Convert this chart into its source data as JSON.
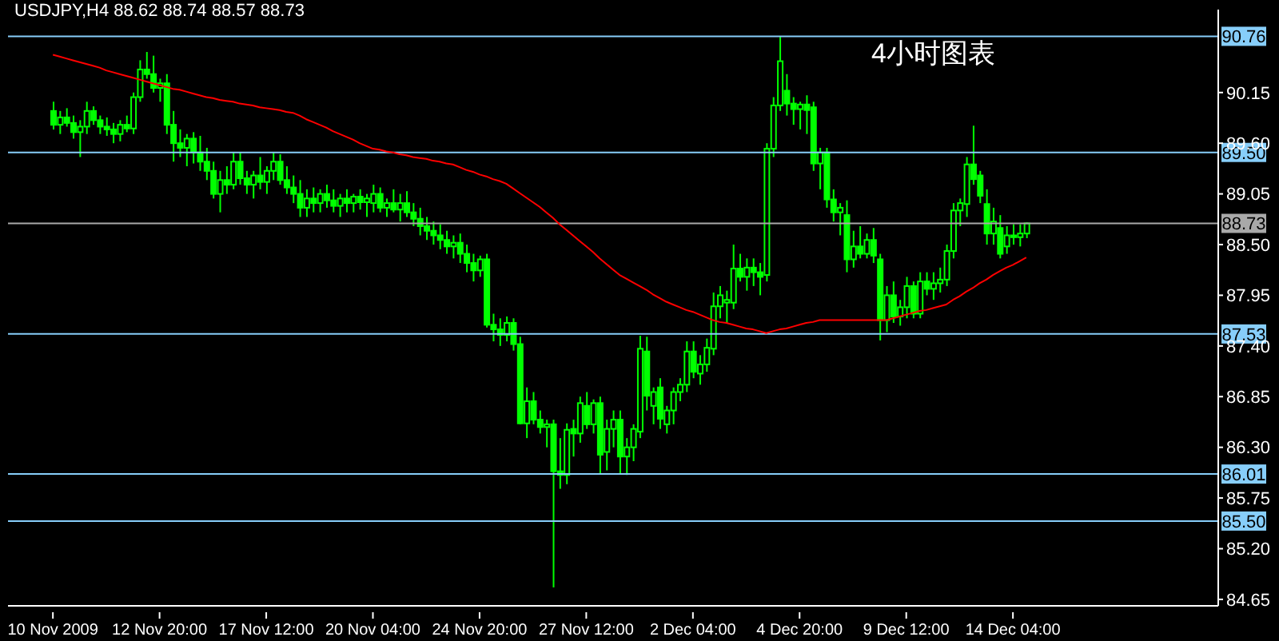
{
  "chart_data": {
    "type": "candlestick",
    "title": "USDJPY,H4 88.62 88.74 88.57 88.73",
    "annotations": [
      "4小时图表"
    ],
    "color": "#00ff00",
    "categories": [
      "10 Nov 2009",
      null,
      null,
      null,
      null,
      null,
      null,
      null,
      null,
      null,
      null,
      null,
      null,
      null,
      null,
      null,
      "12 Nov 20:00",
      null,
      null,
      null,
      null,
      null,
      null,
      null,
      null,
      null,
      null,
      null,
      null,
      null,
      null,
      null,
      "17 Nov 12:00",
      null,
      null,
      null,
      null,
      null,
      null,
      null,
      null,
      null,
      null,
      null,
      null,
      null,
      null,
      null,
      "20 Nov 04:00",
      null,
      null,
      null,
      null,
      null,
      null,
      null,
      null,
      null,
      null,
      null,
      null,
      null,
      null,
      null,
      "24 Nov 20:00",
      null,
      null,
      null,
      null,
      null,
      null,
      null,
      null,
      null,
      null,
      null,
      null,
      null,
      null,
      null,
      "27 Nov 12:00",
      null,
      null,
      null,
      null,
      null,
      null,
      null,
      null,
      null,
      null,
      null,
      null,
      null,
      null,
      null,
      "2 Dec 04:00",
      null,
      null,
      null,
      null,
      null,
      null,
      null,
      null,
      null,
      null,
      null,
      null,
      null,
      null,
      null,
      "4 Dec 20:00",
      null,
      null,
      null,
      null,
      null,
      null,
      null,
      null,
      null,
      null,
      null,
      null,
      null,
      null,
      null,
      "9 Dec 12:00",
      null,
      null,
      null,
      null,
      null,
      null,
      null,
      null,
      null,
      null,
      null,
      null,
      null,
      null,
      null,
      "14 Dec 04:00",
      null,
      null
    ],
    "ohlc": [
      [
        89.95,
        90.05,
        89.75,
        89.8
      ],
      [
        89.8,
        89.95,
        89.7,
        89.88
      ],
      [
        89.88,
        89.98,
        89.78,
        89.82
      ],
      [
        89.82,
        89.9,
        89.65,
        89.72
      ],
      [
        89.72,
        89.85,
        89.45,
        89.78
      ],
      [
        89.78,
        90.05,
        89.7,
        89.95
      ],
      [
        89.95,
        90.0,
        89.8,
        89.85
      ],
      [
        89.85,
        89.9,
        89.7,
        89.78
      ],
      [
        89.78,
        89.88,
        89.68,
        89.75
      ],
      [
        89.75,
        89.82,
        89.6,
        89.7
      ],
      [
        89.7,
        89.85,
        89.62,
        89.8
      ],
      [
        89.8,
        89.9,
        89.72,
        89.76
      ],
      [
        89.76,
        90.15,
        89.7,
        90.1
      ],
      [
        90.1,
        90.5,
        90.05,
        90.4
      ],
      [
        90.4,
        90.59,
        90.3,
        90.35
      ],
      [
        90.35,
        90.55,
        90.15,
        90.2
      ],
      [
        90.2,
        90.3,
        90.05,
        90.25
      ],
      [
        90.25,
        90.35,
        89.7,
        89.8
      ],
      [
        89.8,
        89.95,
        89.4,
        89.6
      ],
      [
        89.6,
        89.75,
        89.45,
        89.55
      ],
      [
        89.55,
        89.7,
        89.35,
        89.65
      ],
      [
        89.65,
        89.72,
        89.38,
        89.5
      ],
      [
        89.5,
        89.68,
        89.3,
        89.4
      ],
      [
        89.4,
        89.55,
        89.2,
        89.3
      ],
      [
        89.3,
        89.4,
        89.0,
        89.05
      ],
      [
        89.05,
        89.3,
        88.85,
        89.2
      ],
      [
        89.2,
        89.35,
        89.05,
        89.15
      ],
      [
        89.15,
        89.5,
        89.1,
        89.4
      ],
      [
        89.4,
        89.5,
        89.15,
        89.22
      ],
      [
        89.22,
        89.3,
        89.05,
        89.15
      ],
      [
        89.15,
        89.3,
        89.0,
        89.25
      ],
      [
        89.25,
        89.45,
        89.1,
        89.18
      ],
      [
        89.18,
        89.35,
        89.05,
        89.3
      ],
      [
        89.3,
        89.5,
        89.2,
        89.4
      ],
      [
        89.4,
        89.48,
        89.15,
        89.2
      ],
      [
        89.2,
        89.35,
        89.05,
        89.12
      ],
      [
        89.12,
        89.25,
        88.95,
        89.05
      ],
      [
        89.05,
        89.2,
        88.8,
        88.9
      ],
      [
        88.9,
        89.1,
        88.8,
        89.0
      ],
      [
        89.0,
        89.12,
        88.85,
        88.95
      ],
      [
        88.95,
        89.1,
        88.85,
        89.05
      ],
      [
        89.05,
        89.15,
        88.9,
        88.98
      ],
      [
        88.98,
        89.1,
        88.85,
        88.92
      ],
      [
        88.92,
        89.05,
        88.8,
        89.0
      ],
      [
        89.0,
        89.1,
        88.85,
        88.95
      ],
      [
        88.95,
        89.05,
        88.85,
        89.02
      ],
      [
        89.02,
        89.1,
        88.88,
        88.96
      ],
      [
        88.96,
        89.05,
        88.8,
        89.0
      ],
      [
        88.95,
        89.15,
        88.85,
        89.05
      ],
      [
        89.05,
        89.12,
        88.85,
        88.9
      ],
      [
        88.9,
        89.0,
        88.8,
        88.95
      ],
      [
        88.95,
        89.1,
        88.85,
        88.88
      ],
      [
        88.88,
        89.05,
        88.75,
        88.95
      ],
      [
        88.95,
        89.08,
        88.8,
        88.85
      ],
      [
        88.85,
        88.95,
        88.7,
        88.78
      ],
      [
        88.78,
        88.9,
        88.6,
        88.7
      ],
      [
        88.7,
        88.8,
        88.55,
        88.65
      ],
      [
        88.65,
        88.75,
        88.5,
        88.6
      ],
      [
        88.6,
        88.72,
        88.45,
        88.55
      ],
      [
        88.55,
        88.65,
        88.4,
        88.48
      ],
      [
        88.48,
        88.6,
        88.35,
        88.52
      ],
      [
        88.52,
        88.62,
        88.3,
        88.4
      ],
      [
        88.4,
        88.5,
        88.2,
        88.3
      ],
      [
        88.3,
        88.4,
        88.1,
        88.22
      ],
      [
        88.22,
        88.38,
        88.15,
        88.34
      ],
      [
        88.34,
        88.4,
        87.6,
        87.63
      ],
      [
        87.63,
        87.75,
        87.45,
        87.58
      ],
      [
        87.58,
        87.7,
        87.4,
        87.52
      ],
      [
        87.52,
        87.72,
        87.45,
        87.65
      ],
      [
        87.65,
        87.7,
        87.35,
        87.42
      ],
      [
        87.42,
        87.5,
        86.55,
        86.56
      ],
      [
        86.56,
        86.95,
        86.4,
        86.8
      ],
      [
        86.8,
        86.9,
        86.55,
        86.6
      ],
      [
        86.6,
        86.7,
        86.45,
        86.52
      ],
      [
        86.52,
        86.6,
        86.3,
        86.55
      ],
      [
        86.55,
        86.6,
        84.78,
        86.04
      ],
      [
        86.04,
        86.4,
        85.85,
        86.0
      ],
      [
        86.0,
        86.56,
        85.9,
        86.49
      ],
      [
        86.5,
        86.6,
        86.2,
        86.45
      ],
      [
        86.45,
        86.85,
        86.35,
        86.78
      ],
      [
        86.75,
        86.9,
        86.5,
        86.55
      ],
      [
        86.55,
        86.82,
        86.45,
        86.78
      ],
      [
        86.78,
        86.85,
        86.01,
        86.22
      ],
      [
        86.25,
        86.6,
        86.05,
        86.5
      ],
      [
        86.5,
        86.7,
        86.3,
        86.6
      ],
      [
        86.6,
        86.7,
        86.01,
        86.2
      ],
      [
        86.2,
        86.4,
        86.0,
        86.3
      ],
      [
        86.3,
        86.55,
        86.15,
        86.5
      ],
      [
        86.47,
        87.51,
        86.4,
        87.37
      ],
      [
        87.34,
        87.5,
        86.7,
        86.86
      ],
      [
        86.75,
        86.95,
        86.55,
        86.9
      ],
      [
        86.95,
        87.05,
        86.5,
        86.61
      ],
      [
        86.55,
        86.75,
        86.45,
        86.7
      ],
      [
        86.7,
        86.95,
        86.55,
        86.9
      ],
      [
        86.9,
        87.05,
        86.8,
        86.98
      ],
      [
        86.98,
        87.45,
        86.9,
        87.34
      ],
      [
        87.34,
        87.45,
        87.05,
        87.12
      ],
      [
        87.1,
        87.3,
        86.98,
        87.2
      ],
      [
        87.2,
        87.48,
        87.12,
        87.38
      ],
      [
        87.37,
        87.98,
        87.3,
        87.83
      ],
      [
        87.83,
        88.05,
        87.7,
        87.95
      ],
      [
        87.87,
        88.0,
        87.65,
        87.9
      ],
      [
        87.87,
        88.5,
        87.8,
        88.24
      ],
      [
        88.24,
        88.4,
        88.1,
        88.15
      ],
      [
        88.15,
        88.35,
        88.0,
        88.25
      ],
      [
        88.25,
        88.35,
        88.05,
        88.2
      ],
      [
        88.2,
        88.3,
        87.95,
        88.15
      ],
      [
        88.17,
        89.6,
        88.1,
        89.54
      ],
      [
        89.54,
        90.1,
        89.45,
        90.01
      ],
      [
        90.01,
        90.76,
        89.95,
        90.49
      ],
      [
        90.17,
        90.35,
        89.9,
        90.03
      ],
      [
        90.03,
        90.1,
        89.8,
        89.97
      ],
      [
        89.97,
        90.05,
        89.75,
        90.02
      ],
      [
        90.02,
        90.12,
        89.7,
        89.96
      ],
      [
        89.99,
        90.05,
        89.3,
        89.38
      ],
      [
        89.38,
        89.55,
        89.1,
        89.5
      ],
      [
        89.5,
        89.55,
        88.9,
        88.99
      ],
      [
        88.99,
        89.1,
        88.75,
        88.85
      ],
      [
        88.85,
        88.95,
        88.6,
        88.9
      ],
      [
        88.82,
        88.98,
        88.2,
        88.34
      ],
      [
        88.34,
        88.65,
        88.25,
        88.48
      ],
      [
        88.48,
        88.7,
        88.35,
        88.4
      ],
      [
        88.4,
        88.62,
        88.35,
        88.55
      ],
      [
        88.55,
        88.68,
        88.3,
        88.38
      ],
      [
        88.34,
        88.4,
        87.46,
        87.68
      ],
      [
        87.68,
        88.05,
        87.55,
        87.95
      ],
      [
        87.95,
        88.1,
        87.65,
        87.72
      ],
      [
        87.72,
        87.9,
        87.62,
        87.82
      ],
      [
        87.82,
        88.15,
        87.7,
        88.05
      ],
      [
        88.05,
        88.1,
        87.7,
        87.75
      ],
      [
        87.75,
        88.2,
        87.7,
        88.1
      ],
      [
        88.1,
        88.2,
        87.95,
        88.02
      ],
      [
        88.02,
        88.2,
        87.9,
        88.08
      ],
      [
        88.08,
        88.25,
        87.98,
        88.12
      ],
      [
        88.12,
        88.5,
        88.05,
        88.43
      ],
      [
        88.43,
        88.95,
        88.35,
        88.87
      ],
      [
        88.87,
        89.0,
        88.7,
        88.95
      ],
      [
        88.94,
        89.45,
        88.8,
        89.37
      ],
      [
        89.37,
        89.79,
        89.15,
        89.21
      ],
      [
        89.25,
        89.3,
        88.95,
        89.03
      ],
      [
        88.94,
        89.1,
        88.5,
        88.62
      ],
      [
        88.62,
        88.9,
        88.5,
        88.75
      ],
      [
        88.68,
        88.82,
        88.35,
        88.4
      ],
      [
        88.48,
        88.7,
        88.4,
        88.6
      ],
      [
        88.6,
        88.72,
        88.5,
        88.58
      ],
      [
        88.58,
        88.72,
        88.48,
        88.62
      ],
      [
        88.62,
        88.74,
        88.57,
        88.73
      ]
    ],
    "series": [
      {
        "type": "line",
        "color": "#ff0000",
        "values": [
          90.56,
          90.54,
          90.52,
          90.5,
          90.48,
          90.46,
          90.44,
          90.42,
          90.39,
          90.37,
          90.35,
          90.33,
          90.31,
          90.29,
          90.27,
          90.25,
          90.23,
          90.21,
          90.19,
          90.18,
          90.16,
          90.14,
          90.12,
          90.1,
          90.09,
          90.07,
          90.06,
          90.05,
          90.03,
          90.02,
          90.01,
          89.99,
          89.98,
          89.97,
          89.96,
          89.94,
          89.93,
          89.9,
          89.86,
          89.83,
          89.8,
          89.77,
          89.73,
          89.7,
          89.67,
          89.64,
          89.6,
          89.57,
          89.54,
          89.53,
          89.51,
          89.5,
          89.48,
          89.47,
          89.45,
          89.44,
          89.43,
          89.41,
          89.4,
          89.38,
          89.37,
          89.34,
          89.31,
          89.29,
          89.26,
          89.24,
          89.21,
          89.19,
          89.16,
          89.11,
          89.06,
          89.01,
          88.96,
          88.91,
          88.85,
          88.79,
          88.72,
          88.66,
          88.6,
          88.54,
          88.48,
          88.42,
          88.35,
          88.29,
          88.23,
          88.17,
          88.13,
          88.09,
          88.05,
          88.01,
          87.96,
          87.92,
          87.88,
          87.85,
          87.82,
          87.79,
          87.77,
          87.74,
          87.71,
          87.68,
          87.66,
          87.65,
          87.63,
          87.61,
          87.59,
          87.58,
          87.56,
          87.54,
          87.56,
          87.58,
          87.59,
          87.61,
          87.63,
          87.65,
          87.66,
          87.68,
          87.68,
          87.68,
          87.68,
          87.68,
          87.68,
          87.68,
          87.68,
          87.68,
          87.68,
          87.68,
          87.7,
          87.72,
          87.74,
          87.76,
          87.78,
          87.79,
          87.81,
          87.83,
          87.85,
          87.9,
          87.94,
          87.99,
          88.03,
          88.08,
          88.12,
          88.17,
          88.21,
          88.25,
          88.28,
          88.32,
          88.36
        ]
      }
    ],
    "ylim": [
      84.58,
      91.05
    ],
    "yticks": [
      {
        "value": 84.65,
        "label": "84.65"
      },
      {
        "value": 85.2,
        "label": "85.20"
      },
      {
        "value": 85.75,
        "label": "85.75"
      },
      {
        "value": 86.3,
        "label": "86.30"
      },
      {
        "value": 86.85,
        "label": "86.85"
      },
      {
        "value": 87.4,
        "label": "87.40"
      },
      {
        "value": 87.95,
        "label": "87.95"
      },
      {
        "value": 88.5,
        "label": "88.50"
      },
      {
        "value": 89.05,
        "label": "89.05"
      },
      {
        "value": 89.6,
        "label": "89.60"
      },
      {
        "value": 90.15,
        "label": "90.15"
      }
    ],
    "ref_lines": [
      {
        "axis": "y",
        "value": 90.76,
        "label": "90.76",
        "color": "#87cefa"
      },
      {
        "axis": "y",
        "value": 89.5,
        "label": "89.50",
        "color": "#87cefa"
      },
      {
        "axis": "y",
        "value": 88.73,
        "label": "88.73",
        "color": "#a9a9a9"
      },
      {
        "axis": "y",
        "value": 87.53,
        "label": "87.53",
        "color": "#87cefa"
      },
      {
        "axis": "y",
        "value": 86.01,
        "label": "86.01",
        "color": "#87cefa"
      },
      {
        "axis": "y",
        "value": 85.5,
        "label": "85.50",
        "color": "#87cefa"
      }
    ]
  }
}
